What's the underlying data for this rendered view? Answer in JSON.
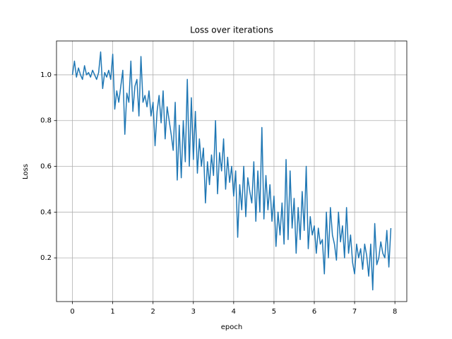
{
  "chart_data": {
    "type": "line",
    "title": "Loss over iterations",
    "x_label": "epoch",
    "y_label": "Loss",
    "x": [
      0,
      0.05,
      0.1,
      0.15,
      0.2,
      0.25,
      0.3,
      0.35,
      0.4,
      0.45,
      0.5,
      0.55,
      0.6,
      0.65,
      0.7,
      0.75,
      0.8,
      0.85,
      0.9,
      0.95,
      1,
      1.05,
      1.1,
      1.15,
      1.2,
      1.25,
      1.3,
      1.35,
      1.4,
      1.45,
      1.5,
      1.55,
      1.6,
      1.65,
      1.7,
      1.75,
      1.8,
      1.85,
      1.9,
      1.95,
      2,
      2.05,
      2.1,
      2.15,
      2.2,
      2.25,
      2.3,
      2.35,
      2.4,
      2.45,
      2.5,
      2.55,
      2.6,
      2.65,
      2.7,
      2.75,
      2.8,
      2.85,
      2.9,
      2.95,
      3,
      3.05,
      3.1,
      3.15,
      3.2,
      3.25,
      3.3,
      3.35,
      3.4,
      3.45,
      3.5,
      3.55,
      3.6,
      3.65,
      3.7,
      3.75,
      3.8,
      3.85,
      3.9,
      3.95,
      4,
      4.05,
      4.1,
      4.15,
      4.2,
      4.25,
      4.3,
      4.35,
      4.4,
      4.45,
      4.5,
      4.55,
      4.6,
      4.65,
      4.7,
      4.75,
      4.8,
      4.85,
      4.9,
      4.95,
      5,
      5.05,
      5.1,
      5.15,
      5.2,
      5.25,
      5.3,
      5.35,
      5.4,
      5.45,
      5.5,
      5.55,
      5.6,
      5.65,
      5.7,
      5.75,
      5.8,
      5.85,
      5.9,
      5.95,
      6,
      6.05,
      6.1,
      6.15,
      6.2,
      6.25,
      6.3,
      6.35,
      6.4,
      6.45,
      6.5,
      6.55,
      6.6,
      6.65,
      6.7,
      6.75,
      6.8,
      6.85,
      6.9,
      6.95,
      7,
      7.05,
      7.1,
      7.15,
      7.2,
      7.25,
      7.3,
      7.35,
      7.4,
      7.45,
      7.5,
      7.55,
      7.6,
      7.65,
      7.7,
      7.75,
      7.8,
      7.85,
      7.9
    ],
    "series": [
      {
        "color": "#1f77b4",
        "values": [
          1.0,
          1.06,
          0.99,
          1.03,
          1.0,
          0.98,
          1.04,
          1.0,
          1.01,
          0.99,
          1.02,
          1.0,
          0.98,
          1.01,
          1.1,
          0.94,
          1.01,
          0.99,
          1.02,
          0.98,
          1.09,
          0.85,
          0.93,
          0.88,
          0.95,
          1.02,
          0.74,
          0.92,
          0.88,
          1.06,
          0.84,
          0.95,
          0.98,
          0.82,
          1.08,
          0.88,
          0.91,
          0.86,
          0.93,
          0.82,
          0.88,
          0.69,
          0.84,
          0.91,
          0.79,
          0.93,
          0.72,
          0.86,
          0.8,
          0.74,
          0.67,
          0.88,
          0.54,
          0.78,
          0.55,
          0.8,
          0.62,
          0.98,
          0.6,
          0.9,
          0.63,
          0.84,
          0.57,
          0.72,
          0.6,
          0.68,
          0.44,
          0.62,
          0.52,
          0.65,
          0.56,
          0.8,
          0.48,
          0.66,
          0.58,
          0.72,
          0.5,
          0.64,
          0.53,
          0.6,
          0.47,
          0.58,
          0.29,
          0.52,
          0.41,
          0.6,
          0.38,
          0.55,
          0.49,
          0.44,
          0.62,
          0.36,
          0.58,
          0.4,
          0.77,
          0.37,
          0.56,
          0.41,
          0.52,
          0.36,
          0.47,
          0.25,
          0.4,
          0.3,
          0.44,
          0.26,
          0.63,
          0.28,
          0.58,
          0.33,
          0.46,
          0.22,
          0.42,
          0.28,
          0.49,
          0.32,
          0.6,
          0.24,
          0.38,
          0.3,
          0.34,
          0.22,
          0.33,
          0.26,
          0.28,
          0.13,
          0.4,
          0.2,
          0.42,
          0.3,
          0.26,
          0.19,
          0.4,
          0.27,
          0.34,
          0.2,
          0.42,
          0.22,
          0.3,
          0.18,
          0.13,
          0.26,
          0.2,
          0.24,
          0.15,
          0.26,
          0.21,
          0.12,
          0.26,
          0.06,
          0.35,
          0.17,
          0.2,
          0.27,
          0.22,
          0.2,
          0.32,
          0.16,
          0.33
        ]
      }
    ],
    "xlim": [
      -0.395,
      8.295
    ],
    "ylim": [
      0.009,
      1.148
    ],
    "xticks": [
      0,
      1,
      2,
      3,
      4,
      5,
      6,
      7,
      8
    ],
    "yticks": [
      0.2,
      0.4,
      0.6,
      0.8,
      {
        "value": 1,
        "label": "1.0"
      }
    ],
    "grid": true
  }
}
